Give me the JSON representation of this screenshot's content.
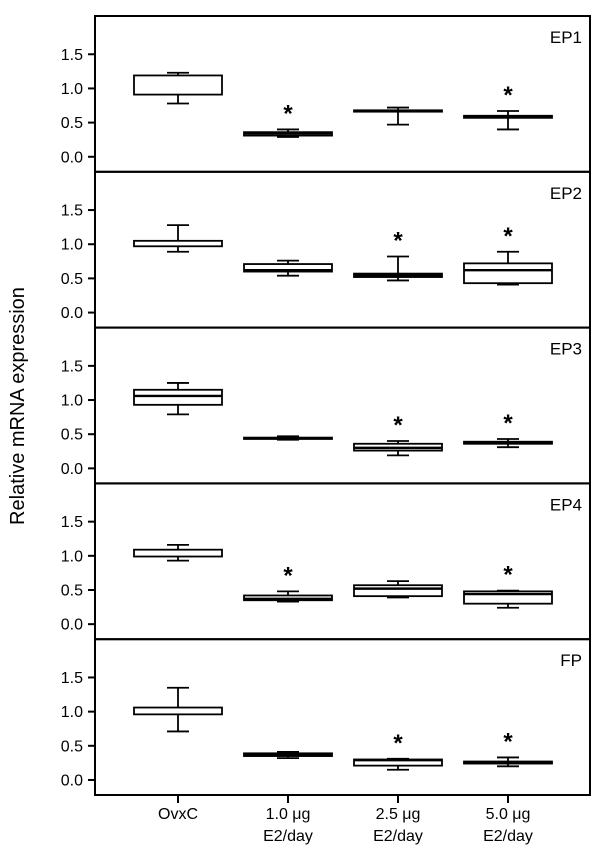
{
  "colors": {
    "ink": "#000000",
    "background": "#ffffff"
  },
  "significance_marker": "*",
  "chart_data": {
    "type": "boxplot",
    "title": "",
    "ylabel": "Relative mRNA expression",
    "xlabel": "",
    "ylim": [
      -0.22,
      2.06
    ],
    "ytick_values": [
      0.0,
      0.5,
      1.0,
      1.5
    ],
    "ytick_labels": [
      "0.0",
      "0.5",
      "1.0",
      "1.5"
    ],
    "grid": false,
    "legend": "none",
    "categories": [
      {
        "lines": [
          "OvxC"
        ]
      },
      {
        "lines": [
          "1.0 μg",
          "E2/day"
        ]
      },
      {
        "lines": [
          "2.5 μg",
          "E2/day"
        ]
      },
      {
        "lines": [
          "5.0 μg",
          "E2/day"
        ]
      }
    ],
    "panels": [
      {
        "label": "EP1",
        "boxes": [
          {
            "category": "OvxC",
            "q1": 0.91,
            "q3": 1.19,
            "median": null,
            "whisker_low": 0.78,
            "whisker_high": 1.23,
            "significant": false
          },
          {
            "category": "1.0 μg E2/day",
            "q1": 0.31,
            "q3": 0.36,
            "median": 0.34,
            "whisker_low": 0.29,
            "whisker_high": 0.4,
            "significant": true
          },
          {
            "category": "2.5 μg E2/day",
            "q1": 0.66,
            "q3": 0.68,
            "median": 0.67,
            "whisker_low": 0.47,
            "whisker_high": 0.72,
            "significant": false
          },
          {
            "category": "5.0 μg E2/day",
            "q1": 0.57,
            "q3": 0.6,
            "median": 0.59,
            "whisker_low": 0.4,
            "whisker_high": 0.67,
            "significant": true
          }
        ]
      },
      {
        "label": "EP2",
        "boxes": [
          {
            "category": "OvxC",
            "q1": 0.97,
            "q3": 1.05,
            "median": null,
            "whisker_low": 0.89,
            "whisker_high": 1.28,
            "significant": false
          },
          {
            "category": "1.0 μg E2/day",
            "q1": 0.6,
            "q3": 0.71,
            "median": 0.62,
            "whisker_low": 0.54,
            "whisker_high": 0.76,
            "significant": false
          },
          {
            "category": "2.5 μg E2/day",
            "q1": 0.52,
            "q3": 0.57,
            "median": 0.54,
            "whisker_low": 0.47,
            "whisker_high": 0.82,
            "significant": true
          },
          {
            "category": "5.0 μg E2/day",
            "q1": 0.43,
            "q3": 0.72,
            "median": 0.62,
            "whisker_low": 0.41,
            "whisker_high": 0.89,
            "significant": true
          }
        ]
      },
      {
        "label": "EP3",
        "boxes": [
          {
            "category": "OvxC",
            "q1": 0.93,
            "q3": 1.15,
            "median": 1.06,
            "whisker_low": 0.79,
            "whisker_high": 1.25,
            "significant": false
          },
          {
            "category": "1.0 μg E2/day",
            "q1": 0.43,
            "q3": 0.45,
            "median": 0.44,
            "whisker_low": 0.42,
            "whisker_high": 0.47,
            "significant": false
          },
          {
            "category": "2.5 μg E2/day",
            "q1": 0.26,
            "q3": 0.36,
            "median": 0.3,
            "whisker_low": 0.19,
            "whisker_high": 0.4,
            "significant": true
          },
          {
            "category": "5.0 μg E2/day",
            "q1": 0.36,
            "q3": 0.39,
            "median": 0.37,
            "whisker_low": 0.31,
            "whisker_high": 0.43,
            "significant": true
          }
        ]
      },
      {
        "label": "EP4",
        "boxes": [
          {
            "category": "OvxC",
            "q1": 0.99,
            "q3": 1.09,
            "median": null,
            "whisker_low": 0.93,
            "whisker_high": 1.16,
            "significant": false
          },
          {
            "category": "1.0 μg E2/day",
            "q1": 0.35,
            "q3": 0.42,
            "median": 0.37,
            "whisker_low": 0.33,
            "whisker_high": 0.48,
            "significant": true
          },
          {
            "category": "2.5 μg E2/day",
            "q1": 0.41,
            "q3": 0.57,
            "median": 0.52,
            "whisker_low": 0.39,
            "whisker_high": 0.63,
            "significant": false
          },
          {
            "category": "5.0 μg E2/day",
            "q1": 0.3,
            "q3": 0.48,
            "median": 0.44,
            "whisker_low": 0.24,
            "whisker_high": 0.49,
            "significant": true
          }
        ]
      },
      {
        "label": "FP",
        "boxes": [
          {
            "category": "OvxC",
            "q1": 0.96,
            "q3": 1.06,
            "median": null,
            "whisker_low": 0.71,
            "whisker_high": 1.35,
            "significant": false
          },
          {
            "category": "1.0 μg E2/day",
            "q1": 0.35,
            "q3": 0.39,
            "median": 0.37,
            "whisker_low": 0.32,
            "whisker_high": 0.41,
            "significant": false
          },
          {
            "category": "2.5 μg E2/day",
            "q1": 0.21,
            "q3": 0.3,
            "median": 0.29,
            "whisker_low": 0.15,
            "whisker_high": 0.31,
            "significant": true
          },
          {
            "category": "5.0 μg E2/day",
            "q1": 0.24,
            "q3": 0.27,
            "median": 0.26,
            "whisker_low": 0.2,
            "whisker_high": 0.33,
            "significant": true
          }
        ]
      }
    ]
  }
}
